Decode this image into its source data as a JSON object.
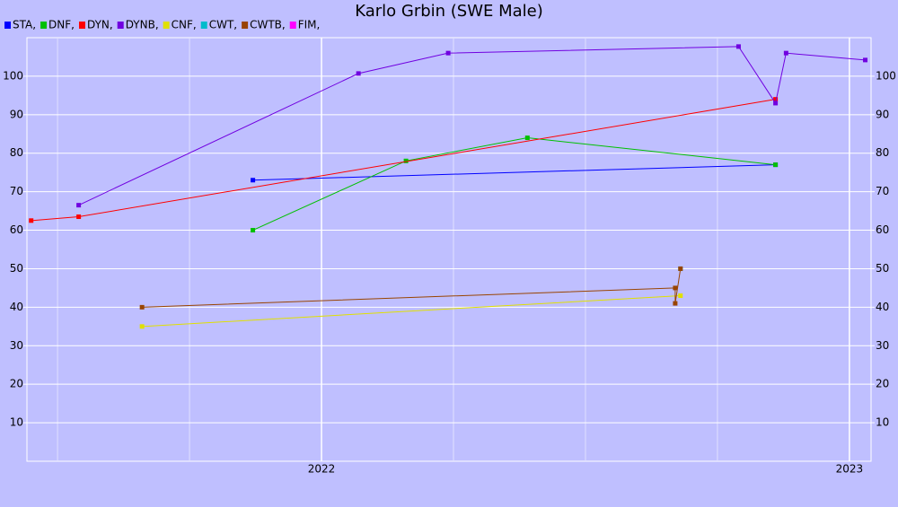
{
  "chart_data": {
    "type": "line",
    "title": "Karlo Grbin (SWE Male)",
    "xlim": [
      2021.442,
      2023.041
    ],
    "xticks": [
      2022,
      2023
    ],
    "xminorticks": [
      2021.5,
      2021.75,
      2022.25,
      2022.5,
      2022.75
    ],
    "ylim": [
      0,
      110
    ],
    "yticks": [
      10,
      20,
      30,
      40,
      50,
      60,
      70,
      80,
      90,
      100
    ],
    "y2lim": [
      0,
      110
    ],
    "y2ticks": [
      10,
      20,
      30,
      40,
      50,
      60,
      70,
      80,
      90,
      100
    ],
    "grid": true,
    "legend": "top-left",
    "series": [
      {
        "name": "STA,",
        "color": "#0000ff",
        "x": [
          2021.87,
          2022.86
        ],
        "values": [
          73,
          77
        ]
      },
      {
        "name": "DNF,",
        "color": "#00c000",
        "x": [
          2021.87,
          2022.16,
          2022.39,
          2022.86
        ],
        "values": [
          60,
          78,
          84,
          77
        ]
      },
      {
        "name": "DYN,",
        "color": "#ff0000",
        "x": [
          2021.45,
          2021.54,
          2022.86
        ],
        "values": [
          62.5,
          63.5,
          94
        ]
      },
      {
        "name": "DYNB,",
        "color": "#7000e0",
        "x": [
          2021.54,
          2022.07,
          2022.24,
          2022.79,
          2022.86,
          2022.88,
          2023.03
        ],
        "values": [
          66.5,
          100.7,
          106,
          107.7,
          93,
          106,
          104.2
        ]
      },
      {
        "name": "CNF,",
        "color": "#e0e000",
        "x": [
          2021.66,
          2022.68
        ],
        "values": [
          35,
          43
        ]
      },
      {
        "name": "CWT,",
        "color": "#00bbcc",
        "x": [
          2022.68
        ],
        "values": [
          50
        ]
      },
      {
        "name": "CWTB,",
        "color": "#994400",
        "x": [
          2021.66,
          2022.67,
          2022.67,
          2022.68
        ],
        "values": [
          40,
          45,
          41,
          50
        ]
      },
      {
        "name": "FIM,",
        "color": "#ff00ff",
        "x": [],
        "values": []
      }
    ]
  }
}
